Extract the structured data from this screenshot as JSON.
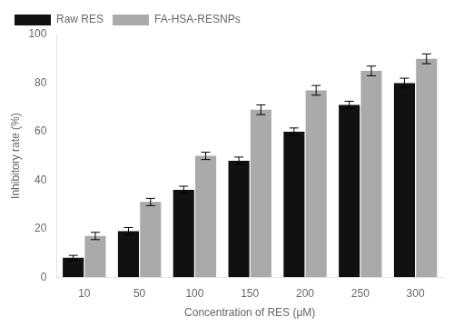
{
  "chart_data": {
    "type": "bar",
    "xlabel": "Concentration of RES (μM)",
    "ylabel": "Inhibitory rate (%)",
    "categories": [
      "10",
      "50",
      "100",
      "150",
      "200",
      "250",
      "300"
    ],
    "series": [
      {
        "name": "Raw RES",
        "color": "#111111",
        "values": [
          8,
          19,
          36,
          48,
          60,
          71,
          80
        ],
        "errors": [
          1.0,
          1.5,
          1.5,
          1.5,
          1.5,
          1.5,
          2.0
        ]
      },
      {
        "name": "FA-HSA-RESNPs",
        "color": "#aaaaaa",
        "values": [
          17,
          31,
          50,
          69,
          77,
          85,
          90
        ],
        "errors": [
          1.5,
          1.5,
          1.5,
          2.0,
          2.0,
          2.0,
          2.0
        ]
      }
    ],
    "ylim": [
      0,
      100
    ],
    "yticks": [
      0,
      20,
      40,
      60,
      80,
      100
    ],
    "grid": false,
    "legend": "upper left"
  }
}
